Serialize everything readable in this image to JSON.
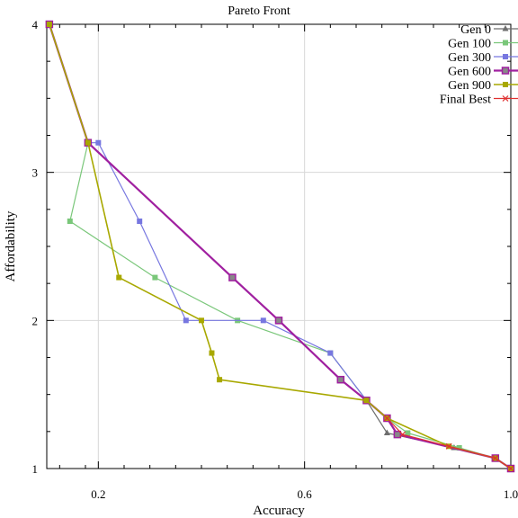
{
  "chart_data": {
    "type": "line",
    "title": "Pareto Front",
    "xlabel": "Accuracy",
    "ylabel": "Affordability",
    "xlim": [
      0.1,
      1.0
    ],
    "ylim": [
      1.0,
      4.0
    ],
    "grid": true,
    "legend_position": "top-right",
    "x_ticks": [
      {
        "value": 0.2,
        "label": "0.2"
      },
      {
        "value": 0.6,
        "label": "0.6"
      },
      {
        "value": 1.0,
        "label": "1.0"
      }
    ],
    "x_minor_ticks": [
      0.125,
      0.175,
      0.25,
      0.3,
      0.35,
      0.4,
      0.45,
      0.5,
      0.55,
      0.65,
      0.7,
      0.75,
      0.8,
      0.85,
      0.9,
      0.95
    ],
    "y_ticks": [
      {
        "value": 1,
        "label": "1"
      },
      {
        "value": 2,
        "label": "2"
      },
      {
        "value": 3,
        "label": "3"
      },
      {
        "value": 4,
        "label": "4"
      }
    ],
    "y_minor_ticks": [
      1.25,
      1.5,
      1.75,
      2.25,
      2.5,
      2.75,
      3.25,
      3.5,
      3.75
    ],
    "series": [
      {
        "name": "Gen 0",
        "color": "#6e6e6e",
        "marker": "triangle",
        "width": 1.2,
        "points": [
          [
            0.105,
            4.0
          ],
          [
            0.18,
            3.2
          ],
          [
            0.46,
            2.29
          ],
          [
            0.55,
            2.0
          ],
          [
            0.67,
            1.6
          ],
          [
            0.72,
            1.46
          ],
          [
            0.76,
            1.24
          ],
          [
            0.89,
            1.14
          ],
          [
            0.97,
            1.07
          ],
          [
            1.0,
            1.0
          ]
        ]
      },
      {
        "name": "Gen 100",
        "color": "#7ac77a",
        "marker": "square",
        "width": 1.2,
        "points": [
          [
            0.105,
            4.0
          ],
          [
            0.18,
            3.2
          ],
          [
            0.145,
            2.67
          ],
          [
            0.31,
            2.29
          ],
          [
            0.47,
            2.0
          ],
          [
            0.65,
            1.78
          ],
          [
            0.72,
            1.46
          ],
          [
            0.76,
            1.34
          ],
          [
            0.8,
            1.24
          ],
          [
            0.9,
            1.14
          ],
          [
            0.97,
            1.07
          ],
          [
            1.0,
            1.0
          ]
        ]
      },
      {
        "name": "Gen 300",
        "color": "#7777e0",
        "marker": "square",
        "width": 1.2,
        "points": [
          [
            0.105,
            4.0
          ],
          [
            0.18,
            3.2
          ],
          [
            0.2,
            3.2
          ],
          [
            0.28,
            2.67
          ],
          [
            0.37,
            2.0
          ],
          [
            0.52,
            2.0
          ],
          [
            0.65,
            1.78
          ],
          [
            0.72,
            1.46
          ],
          [
            0.76,
            1.34
          ],
          [
            0.78,
            1.23
          ],
          [
            0.97,
            1.07
          ],
          [
            1.0,
            1.0
          ]
        ]
      },
      {
        "name": "Gen 600",
        "color": "#a020a0",
        "marker": "square-open",
        "width": 2.2,
        "points": [
          [
            0.105,
            4.0
          ],
          [
            0.18,
            3.2
          ],
          [
            0.46,
            2.29
          ],
          [
            0.55,
            2.0
          ],
          [
            0.67,
            1.6
          ],
          [
            0.72,
            1.46
          ],
          [
            0.76,
            1.34
          ],
          [
            0.78,
            1.23
          ],
          [
            0.97,
            1.07
          ],
          [
            1.0,
            1.0
          ]
        ]
      },
      {
        "name": "Gen 900",
        "color": "#a8a800",
        "marker": "square",
        "width": 1.6,
        "points": [
          [
            0.105,
            4.0
          ],
          [
            0.18,
            3.2
          ],
          [
            0.24,
            2.29
          ],
          [
            0.4,
            2.0
          ],
          [
            0.42,
            1.78
          ],
          [
            0.435,
            1.6
          ],
          [
            0.72,
            1.46
          ],
          [
            0.76,
            1.34
          ],
          [
            0.88,
            1.15
          ],
          [
            0.97,
            1.07
          ],
          [
            1.0,
            1.0
          ]
        ]
      },
      {
        "name": "Final Best",
        "color": "#e03030",
        "marker": "x",
        "width": 1.2,
        "points": [
          [
            0.76,
            1.34
          ],
          [
            0.79,
            1.23
          ],
          [
            0.88,
            1.15
          ],
          [
            0.97,
            1.07
          ],
          [
            1.0,
            1.0
          ]
        ]
      }
    ]
  }
}
